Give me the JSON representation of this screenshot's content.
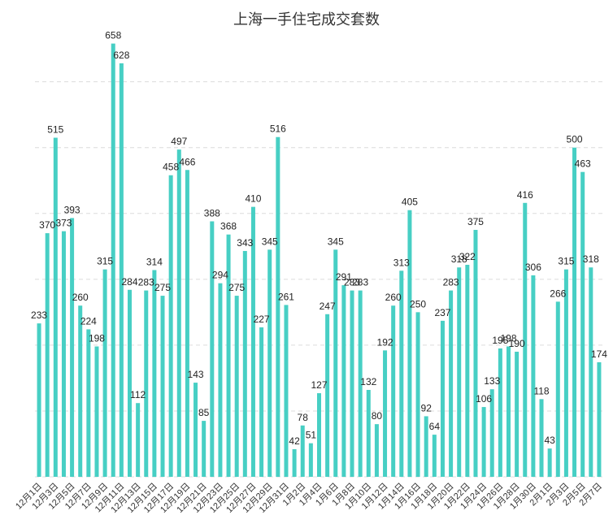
{
  "chart_data": {
    "type": "bar",
    "title": "上海一手住宅成交套数",
    "xlabel": "",
    "ylabel": "",
    "ylim": [
      0,
      660
    ],
    "grid": true,
    "bar_color": "#47cfc4",
    "categories": [
      "12月1日",
      "12月2日",
      "12月3日",
      "12月4日",
      "12月5日",
      "12月6日",
      "12月7日",
      "12月8日",
      "12月9日",
      "12月10日",
      "12月11日",
      "12月12日",
      "12月13日",
      "12月14日",
      "12月15日",
      "12月16日",
      "12月17日",
      "12月18日",
      "12月19日",
      "12月20日",
      "12月21日",
      "12月22日",
      "12月23日",
      "12月24日",
      "12月25日",
      "12月26日",
      "12月27日",
      "12月28日",
      "12月29日",
      "12月30日",
      "12月31日",
      "1月1日",
      "1月2日",
      "1月3日",
      "1月4日",
      "1月5日",
      "1月6日",
      "1月7日",
      "1月8日",
      "1月9日",
      "1月10日",
      "1月11日",
      "1月12日",
      "1月13日",
      "1月14日",
      "1月15日",
      "1月16日",
      "1月17日",
      "1月18日",
      "1月19日",
      "1月20日",
      "1月21日",
      "1月22日",
      "1月23日",
      "1月24日",
      "1月25日",
      "1月26日",
      "1月27日",
      "1月28日",
      "1月29日",
      "1月30日",
      "1月31日",
      "2月1日",
      "2月2日",
      "2月3日",
      "2月4日",
      "2月5日",
      "2月6日",
      "2月7日"
    ],
    "values": [
      233,
      370,
      515,
      373,
      393,
      260,
      224,
      198,
      315,
      658,
      628,
      284,
      112,
      283,
      314,
      275,
      458,
      497,
      466,
      143,
      85,
      388,
      294,
      368,
      275,
      343,
      410,
      227,
      345,
      516,
      261,
      42,
      78,
      51,
      127,
      247,
      345,
      291,
      283,
      283,
      132,
      80,
      192,
      260,
      313,
      405,
      250,
      92,
      64,
      237,
      283,
      318,
      322,
      375,
      106,
      133,
      195,
      198,
      190,
      416,
      306,
      118,
      43,
      266,
      315,
      500,
      463,
      318,
      174
    ],
    "xtick_labels": [
      "12月1日",
      "12月3日",
      "12月5日",
      "12月7日",
      "12月9日",
      "12月11日",
      "12月13日",
      "12月15日",
      "12月17日",
      "12月19日",
      "12月21日",
      "12月23日",
      "12月25日",
      "12月27日",
      "12月29日",
      "12月31日",
      "1月2日",
      "1月4日",
      "1月6日",
      "1月8日",
      "1月10日",
      "1月12日",
      "1月14日",
      "1月16日",
      "1月18日",
      "1月20日",
      "1月22日",
      "1月24日",
      "1月26日",
      "1月28日",
      "1月30日",
      "2月1日",
      "2月3日",
      "2月5日",
      "2月7日"
    ]
  }
}
